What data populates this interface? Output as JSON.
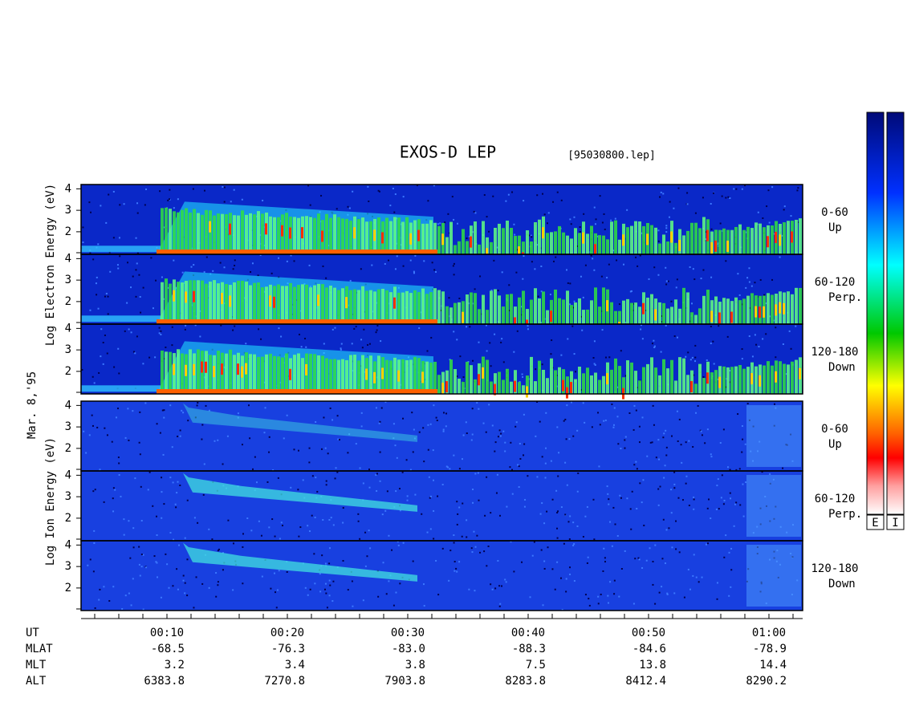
{
  "title": "EXOS-D LEP",
  "file": "[95030800.lep]",
  "date": "Mar. 8,'95",
  "electron_axis_label": "Log Electron Energy (eV)",
  "ion_axis_label": "Log Ion Energy (eV)",
  "panels": [
    {
      "species": "electron",
      "yticks": [
        2,
        3,
        4
      ],
      "ylim": [
        0.95,
        4.2
      ],
      "label": [
        "0-60",
        "Up"
      ]
    },
    {
      "species": "electron",
      "yticks": [
        2,
        3,
        4
      ],
      "ylim": [
        0.95,
        4.2
      ],
      "label": [
        "60-120",
        "Perp."
      ]
    },
    {
      "species": "electron",
      "yticks": [
        2,
        3,
        4
      ],
      "ylim": [
        0.95,
        4.2
      ],
      "label": [
        "120-180",
        "Down"
      ]
    },
    {
      "species": "ion",
      "yticks": [
        2,
        3,
        4
      ],
      "ylim": [
        0.95,
        4.2
      ],
      "label": [
        "0-60",
        "Up"
      ]
    },
    {
      "species": "ion",
      "yticks": [
        2,
        3,
        4
      ],
      "ylim": [
        0.95,
        4.2
      ],
      "label": [
        "60-120",
        "Perp."
      ]
    },
    {
      "species": "ion",
      "yticks": [
        2,
        3,
        4
      ],
      "ylim": [
        0.95,
        4.2
      ],
      "label": [
        "120-180",
        "Down"
      ]
    }
  ],
  "colorbars": [
    "E",
    "I"
  ],
  "time_axis": [
    {
      "name": "UT",
      "values": [
        "00:10",
        "00:20",
        "00:30",
        "00:40",
        "00:50",
        "01:00"
      ]
    },
    {
      "name": "MLAT",
      "values": [
        "-68.5",
        "-76.3",
        "-83.0",
        "-88.3",
        "-84.6",
        "-78.9"
      ]
    },
    {
      "name": "MLT",
      "values": [
        "3.2",
        "3.4",
        "3.8",
        "7.5",
        "13.8",
        "14.4"
      ]
    },
    {
      "name": "ALT",
      "values": [
        "6383.8",
        "7270.8",
        "7903.8",
        "8283.8",
        "8412.4",
        "8290.2"
      ]
    }
  ]
}
